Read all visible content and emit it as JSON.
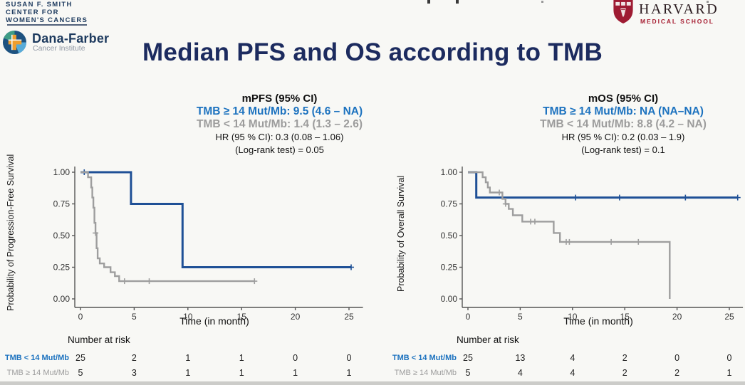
{
  "header": {
    "susan_center": {
      "lines": [
        "SUSAN F. SMITH",
        "CENTER FOR",
        "WOMEN'S CANCERS"
      ]
    },
    "dana_farber": {
      "name": "Dana-Farber",
      "subtitle": "Cancer Institute"
    },
    "harvard": {
      "name": "HARVARD",
      "subtitle": "MEDICAL SCHOOL"
    },
    "title": "Median PFS and OS according to TMB"
  },
  "colors": {
    "tmb_high_curve": "#1f5096",
    "tmb_low_curve": "#9e9e9e",
    "annotation_blue": "#1c72bf",
    "annotation_gray": "#9c9c9c",
    "title_navy": "#1c2b5f",
    "harvard_crimson": "#a51c30"
  },
  "chart_data": [
    {
      "type": "line",
      "subtype": "kaplan-meier-step",
      "title": "mPFS (95% CI)",
      "xlabel": "Time (in month)",
      "ylabel": "Probability of Progression-Free Survival",
      "xlim": [
        0,
        26.3
      ],
      "ylim": [
        0,
        1
      ],
      "xticks": [
        0,
        5,
        10,
        15,
        20,
        25
      ],
      "yticks": [
        0.0,
        0.25,
        0.5,
        0.75,
        1.0
      ],
      "grid": false,
      "legend": "none",
      "annotation": {
        "header": "mPFS (95% CI)",
        "tmb_high": "TMB ≥ 14 Mut/Mb: 9.5 (4.6 – NA)",
        "tmb_low": "TMB < 14 Mut/Mb: 1.4 (1.3 – 2.6)",
        "hr": "HR (95 % CI): 0.3 (0.08 – 1.06)",
        "logrank": "(Log-rank test) = 0.05"
      },
      "series": [
        {
          "name": "TMB ≥ 14 Mut/Mb",
          "color": "#1f5096",
          "width": 3,
          "steps": [
            [
              0,
              1
            ],
            [
              4.7,
              1
            ],
            [
              4.7,
              0.75
            ],
            [
              9.5,
              0.75
            ],
            [
              9.5,
              0.25
            ],
            [
              25.2,
              0.25
            ]
          ],
          "censors": [
            [
              0.35,
              1
            ],
            [
              25.2,
              0.25
            ]
          ]
        },
        {
          "name": "TMB < 14 Mut/Mb",
          "color": "#9e9e9e",
          "width": 2.4,
          "steps": [
            [
              0,
              1
            ],
            [
              0.7,
              1
            ],
            [
              0.7,
              0.96
            ],
            [
              1.0,
              0.96
            ],
            [
              1.0,
              0.88
            ],
            [
              1.1,
              0.88
            ],
            [
              1.1,
              0.8
            ],
            [
              1.2,
              0.8
            ],
            [
              1.2,
              0.72
            ],
            [
              1.3,
              0.72
            ],
            [
              1.3,
              0.6
            ],
            [
              1.4,
              0.6
            ],
            [
              1.4,
              0.52
            ],
            [
              1.5,
              0.52
            ],
            [
              1.5,
              0.4
            ],
            [
              1.6,
              0.4
            ],
            [
              1.6,
              0.32
            ],
            [
              1.8,
              0.32
            ],
            [
              1.8,
              0.28
            ],
            [
              2.2,
              0.28
            ],
            [
              2.2,
              0.25
            ],
            [
              2.8,
              0.25
            ],
            [
              2.8,
              0.21
            ],
            [
              3.2,
              0.21
            ],
            [
              3.2,
              0.18
            ],
            [
              3.6,
              0.18
            ],
            [
              3.6,
              0.14
            ],
            [
              16.2,
              0.14
            ]
          ],
          "censors": [
            [
              1.4,
              0.52
            ],
            [
              4.1,
              0.14
            ],
            [
              6.4,
              0.14
            ],
            [
              16.2,
              0.14
            ]
          ]
        }
      ],
      "risk_table": {
        "title": "Number at risk",
        "times": [
          0,
          5,
          10,
          15,
          20,
          25
        ],
        "rows": [
          {
            "label": "TMB < 14 Mut/Mb",
            "color": "#1c72bf",
            "bold": true,
            "values": [
              25,
              2,
              1,
              1,
              0,
              0
            ]
          },
          {
            "label": "TMB ≥ 14 Mut/Mb",
            "color": "#9c9c9c",
            "bold": false,
            "values": [
              5,
              3,
              1,
              1,
              1,
              1
            ]
          }
        ]
      }
    },
    {
      "type": "line",
      "subtype": "kaplan-meier-step",
      "title": "mOS (95% CI)",
      "xlabel": "Time (in month)",
      "ylabel": "Probability of Overall Survival",
      "xlim": [
        0,
        26.3
      ],
      "ylim": [
        0,
        1
      ],
      "xticks": [
        0,
        5,
        10,
        15,
        20,
        25
      ],
      "yticks": [
        0.0,
        0.25,
        0.5,
        0.75,
        1.0
      ],
      "grid": false,
      "legend": "none",
      "annotation": {
        "header": "mOS (95% CI)",
        "tmb_high": "TMB ≥ 14 Mut/Mb: NA (NA–NA)",
        "tmb_low": "TMB < 14 Mut/Mb: 8.8 (4.2 – NA)",
        "hr": "HR (95 % CI): 0.2 (0.03 – 1.9)",
        "logrank": "(Log-rank test) = 0.1"
      },
      "series": [
        {
          "name": "TMB ≥ 14 Mut/Mb",
          "color": "#1f5096",
          "width": 3,
          "steps": [
            [
              0,
              1
            ],
            [
              0.8,
              1
            ],
            [
              0.8,
              0.8
            ],
            [
              25.8,
              0.8
            ]
          ],
          "censors": [
            [
              10.3,
              0.8
            ],
            [
              14.5,
              0.8
            ],
            [
              20.8,
              0.8
            ],
            [
              25.8,
              0.8
            ]
          ]
        },
        {
          "name": "TMB < 14 Mut/Mb",
          "color": "#9e9e9e",
          "width": 2.4,
          "steps": [
            [
              0,
              1
            ],
            [
              1.4,
              1
            ],
            [
              1.4,
              0.96
            ],
            [
              1.7,
              0.96
            ],
            [
              1.7,
              0.92
            ],
            [
              1.9,
              0.92
            ],
            [
              1.9,
              0.88
            ],
            [
              2.1,
              0.88
            ],
            [
              2.1,
              0.84
            ],
            [
              3.3,
              0.84
            ],
            [
              3.3,
              0.79
            ],
            [
              3.6,
              0.79
            ],
            [
              3.6,
              0.75
            ],
            [
              3.9,
              0.75
            ],
            [
              3.9,
              0.71
            ],
            [
              4.3,
              0.71
            ],
            [
              4.3,
              0.66
            ],
            [
              5.2,
              0.66
            ],
            [
              5.2,
              0.61
            ],
            [
              8.2,
              0.61
            ],
            [
              8.2,
              0.52
            ],
            [
              8.8,
              0.52
            ],
            [
              8.8,
              0.45
            ],
            [
              19.3,
              0.45
            ],
            [
              19.3,
              0
            ]
          ],
          "censors": [
            [
              3.0,
              0.84
            ],
            [
              3.6,
              0.75
            ],
            [
              6.0,
              0.61
            ],
            [
              6.4,
              0.61
            ],
            [
              9.4,
              0.45
            ],
            [
              9.7,
              0.45
            ],
            [
              13.7,
              0.45
            ],
            [
              16.3,
              0.45
            ]
          ]
        }
      ],
      "risk_table": {
        "title": "Number at risk",
        "times": [
          0,
          5,
          10,
          15,
          20,
          25
        ],
        "rows": [
          {
            "label": "TMB < 14 Mut/Mb",
            "color": "#1c72bf",
            "bold": true,
            "values": [
              25,
              13,
              4,
              2,
              0,
              0
            ]
          },
          {
            "label": "TMB ≥ 14 Mut/Mb",
            "color": "#9c9c9c",
            "bold": false,
            "values": [
              5,
              4,
              4,
              2,
              2,
              1
            ]
          }
        ]
      }
    }
  ]
}
